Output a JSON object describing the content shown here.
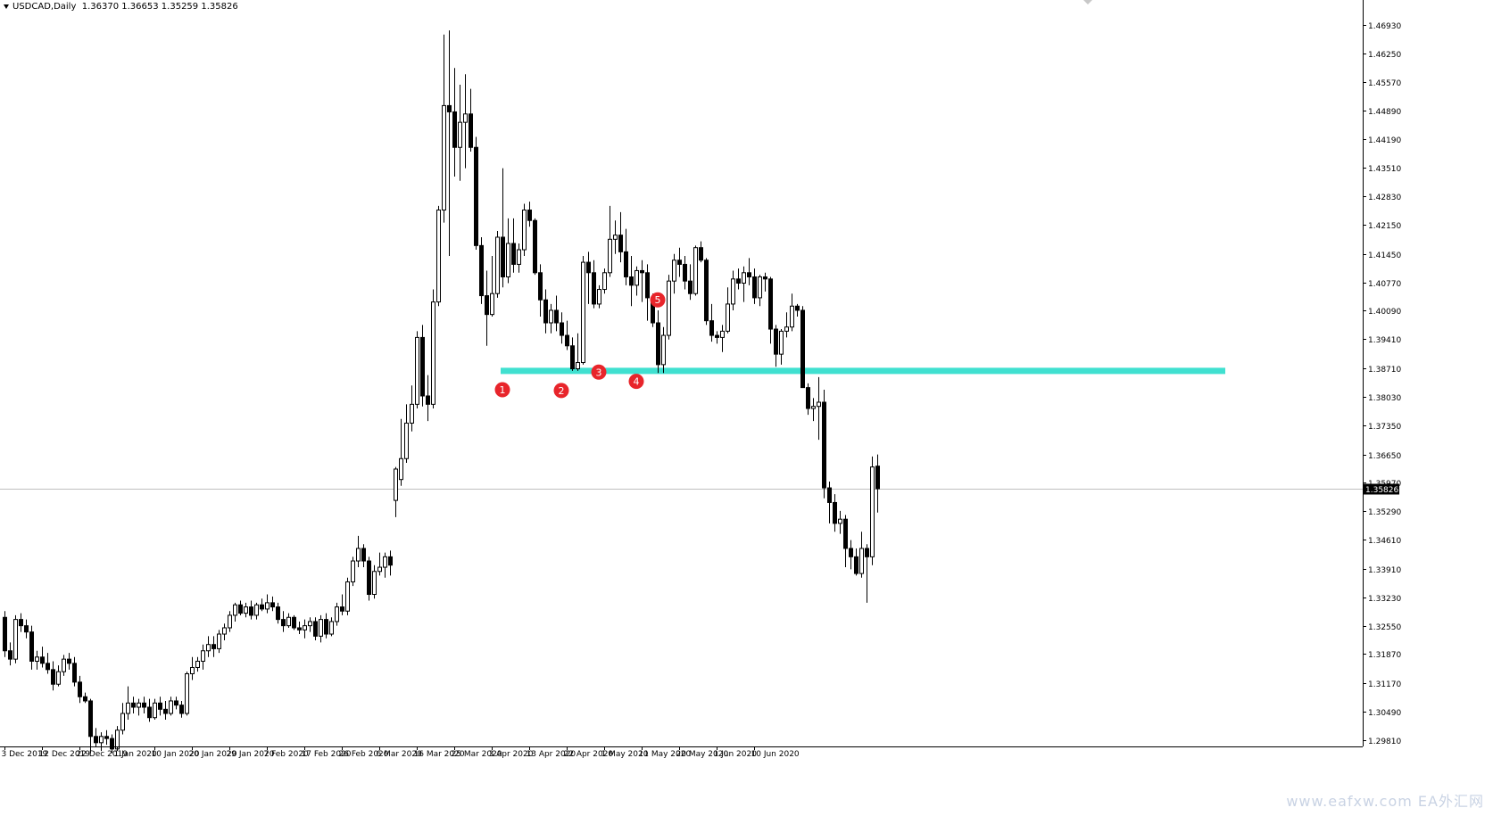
{
  "header": {
    "symbol_timeframe": "USDCAD,Daily",
    "ohlc": "1.36370 1.36653 1.35259 1.35826"
  },
  "watermark": "www.eafxw.com  EA外汇网",
  "colors": {
    "background": "#ffffff",
    "candle": "#000000",
    "support_band": "#40e0d0",
    "marker": "#e8252b",
    "price_line": "#c0c0c0"
  },
  "chart_data": {
    "type": "candlestick",
    "symbol": "USDCAD",
    "timeframe": "Daily",
    "current_price": 1.35826,
    "current_price_label": "1.35826",
    "y_range": [
      1.2906,
      1.4736
    ],
    "y_ticks": [
      "1.46930",
      "1.46250",
      "1.45570",
      "1.44890",
      "1.44190",
      "1.43510",
      "1.42830",
      "1.42150",
      "1.41450",
      "1.40770",
      "1.40090",
      "1.39410",
      "1.38710",
      "1.38030",
      "1.37350",
      "1.36650",
      "1.35970",
      "1.35290",
      "1.34610",
      "1.33910",
      "1.33230",
      "1.32550",
      "1.31870",
      "1.31170",
      "1.30490",
      "1.29810"
    ],
    "x_labels": [
      {
        "bar": 0,
        "label": "3 Dec 2019"
      },
      {
        "bar": 7,
        "label": "12 Dec 2019"
      },
      {
        "bar": 14,
        "label": "22 Dec 2019"
      },
      {
        "bar": 21,
        "label": "1 Jan 2020"
      },
      {
        "bar": 28,
        "label": "10 Jan 2020"
      },
      {
        "bar": 35,
        "label": "20 Jan 2020"
      },
      {
        "bar": 42,
        "label": "29 Jan 2020"
      },
      {
        "bar": 49,
        "label": "7 Feb 2020"
      },
      {
        "bar": 56,
        "label": "17 Feb 2020"
      },
      {
        "bar": 63,
        "label": "26 Feb 2020"
      },
      {
        "bar": 70,
        "label": "6 Mar 2020"
      },
      {
        "bar": 77,
        "label": "16 Mar 2020"
      },
      {
        "bar": 84,
        "label": "25 Mar 2020"
      },
      {
        "bar": 91,
        "label": "3 Apr 2020"
      },
      {
        "bar": 98,
        "label": "13 Apr 2020"
      },
      {
        "bar": 105,
        "label": "22 Apr 2020"
      },
      {
        "bar": 112,
        "label": "1 May 2020"
      },
      {
        "bar": 119,
        "label": "11 May 2020"
      },
      {
        "bar": 126,
        "label": "20 May 2020"
      },
      {
        "bar": 133,
        "label": "1 Jun 2020"
      },
      {
        "bar": 140,
        "label": "10 Jun 2020"
      }
    ],
    "candles": [
      [
        1.3275,
        1.329,
        1.318,
        1.3195
      ],
      [
        1.3195,
        1.3215,
        1.316,
        1.3175
      ],
      [
        1.3175,
        1.328,
        1.3165,
        1.327
      ],
      [
        1.327,
        1.3285,
        1.324,
        1.3255
      ],
      [
        1.3255,
        1.327,
        1.3225,
        1.324
      ],
      [
        1.324,
        1.3255,
        1.315,
        1.317
      ],
      [
        1.317,
        1.3195,
        1.315,
        1.318
      ],
      [
        1.318,
        1.3205,
        1.3155,
        1.3165
      ],
      [
        1.3165,
        1.319,
        1.314,
        1.315
      ],
      [
        1.315,
        1.317,
        1.31,
        1.3115
      ],
      [
        1.3115,
        1.316,
        1.311,
        1.3145
      ],
      [
        1.3145,
        1.3185,
        1.3135,
        1.3175
      ],
      [
        1.3175,
        1.319,
        1.315,
        1.3165
      ],
      [
        1.3165,
        1.318,
        1.311,
        1.312
      ],
      [
        1.312,
        1.3135,
        1.307,
        1.3085
      ],
      [
        1.3085,
        1.3095,
        1.307,
        1.3075
      ],
      [
        1.3075,
        1.308,
        1.295,
        1.299
      ],
      [
        1.299,
        1.301,
        1.2965,
        1.2975
      ],
      [
        1.2975,
        1.3,
        1.2955,
        1.299
      ],
      [
        1.299,
        1.3005,
        1.297,
        1.2985
      ],
      [
        1.2985,
        1.2995,
        1.295,
        1.296
      ],
      [
        1.296,
        1.3015,
        1.2955,
        1.3005
      ],
      [
        1.3005,
        1.307,
        1.2995,
        1.3045
      ],
      [
        1.3045,
        1.311,
        1.303,
        1.307
      ],
      [
        1.307,
        1.3085,
        1.3045,
        1.306
      ],
      [
        1.306,
        1.308,
        1.304,
        1.307
      ],
      [
        1.307,
        1.3085,
        1.3045,
        1.306
      ],
      [
        1.306,
        1.308,
        1.3025,
        1.3035
      ],
      [
        1.3035,
        1.308,
        1.303,
        1.307
      ],
      [
        1.307,
        1.3085,
        1.304,
        1.3055
      ],
      [
        1.3055,
        1.3075,
        1.303,
        1.3045
      ],
      [
        1.3045,
        1.3085,
        1.304,
        1.3075
      ],
      [
        1.3075,
        1.3085,
        1.3055,
        1.3065
      ],
      [
        1.3065,
        1.3075,
        1.3035,
        1.3045
      ],
      [
        1.3045,
        1.3145,
        1.304,
        1.314
      ],
      [
        1.314,
        1.318,
        1.3125,
        1.3155
      ],
      [
        1.3155,
        1.318,
        1.3145,
        1.317
      ],
      [
        1.317,
        1.321,
        1.315,
        1.3195
      ],
      [
        1.3195,
        1.323,
        1.318,
        1.321
      ],
      [
        1.321,
        1.323,
        1.318,
        1.32
      ],
      [
        1.32,
        1.3245,
        1.319,
        1.3235
      ],
      [
        1.3235,
        1.326,
        1.322,
        1.325
      ],
      [
        1.325,
        1.329,
        1.324,
        1.328
      ],
      [
        1.328,
        1.331,
        1.3265,
        1.3305
      ],
      [
        1.3305,
        1.3315,
        1.328,
        1.3285
      ],
      [
        1.3285,
        1.331,
        1.3275,
        1.33
      ],
      [
        1.33,
        1.3315,
        1.327,
        1.328
      ],
      [
        1.328,
        1.331,
        1.327,
        1.3305
      ],
      [
        1.3305,
        1.332,
        1.329,
        1.3295
      ],
      [
        1.3295,
        1.333,
        1.3285,
        1.331
      ],
      [
        1.331,
        1.3325,
        1.329,
        1.33
      ],
      [
        1.33,
        1.331,
        1.326,
        1.327
      ],
      [
        1.327,
        1.329,
        1.324,
        1.3255
      ],
      [
        1.3255,
        1.3285,
        1.325,
        1.3275
      ],
      [
        1.3275,
        1.328,
        1.3245,
        1.325
      ],
      [
        1.325,
        1.3265,
        1.3235,
        1.3245
      ],
      [
        1.3245,
        1.327,
        1.3225,
        1.3255
      ],
      [
        1.3255,
        1.3275,
        1.324,
        1.3265
      ],
      [
        1.3265,
        1.3275,
        1.322,
        1.323
      ],
      [
        1.323,
        1.328,
        1.3215,
        1.327
      ],
      [
        1.327,
        1.3285,
        1.3225,
        1.3235
      ],
      [
        1.3235,
        1.3275,
        1.323,
        1.3265
      ],
      [
        1.3265,
        1.331,
        1.3255,
        1.33
      ],
      [
        1.33,
        1.333,
        1.328,
        1.329
      ],
      [
        1.329,
        1.337,
        1.328,
        1.336
      ],
      [
        1.336,
        1.342,
        1.335,
        1.341
      ],
      [
        1.341,
        1.347,
        1.3395,
        1.344
      ],
      [
        1.344,
        1.345,
        1.3395,
        1.341
      ],
      [
        1.341,
        1.342,
        1.3315,
        1.333
      ],
      [
        1.333,
        1.34,
        1.332,
        1.3385
      ],
      [
        1.3385,
        1.343,
        1.3375,
        1.3395
      ],
      [
        1.3395,
        1.343,
        1.337,
        1.342
      ],
      [
        1.342,
        1.3435,
        1.3375,
        1.34
      ],
      [
        1.3555,
        1.3635,
        1.3515,
        1.363
      ],
      [
        1.3605,
        1.375,
        1.359,
        1.3655
      ],
      [
        1.3655,
        1.3785,
        1.3645,
        1.374
      ],
      [
        1.374,
        1.383,
        1.372,
        1.3785
      ],
      [
        1.3785,
        1.396,
        1.3775,
        1.3945
      ],
      [
        1.3945,
        1.3975,
        1.378,
        1.3805
      ],
      [
        1.3805,
        1.3855,
        1.3745,
        1.3785
      ],
      [
        1.3785,
        1.406,
        1.3775,
        1.403
      ],
      [
        1.403,
        1.426,
        1.402,
        1.425
      ],
      [
        1.425,
        1.467,
        1.422,
        1.45
      ],
      [
        1.45,
        1.468,
        1.414,
        1.4485
      ],
      [
        1.4485,
        1.459,
        1.433,
        1.44
      ],
      [
        1.44,
        1.455,
        1.432,
        1.446
      ],
      [
        1.446,
        1.4575,
        1.435,
        1.448
      ],
      [
        1.448,
        1.454,
        1.439,
        1.44
      ],
      [
        1.44,
        1.4425,
        1.4155,
        1.4165
      ],
      [
        1.4165,
        1.4185,
        1.4025,
        1.4045
      ],
      [
        1.4045,
        1.4105,
        1.3925,
        1.4
      ],
      [
        1.4,
        1.414,
        1.3995,
        1.405
      ],
      [
        1.405,
        1.42,
        1.404,
        1.4185
      ],
      [
        1.4185,
        1.435,
        1.4065,
        1.409
      ],
      [
        1.409,
        1.423,
        1.4075,
        1.417
      ],
      [
        1.417,
        1.423,
        1.41,
        1.412
      ],
      [
        1.412,
        1.417,
        1.41,
        1.4155
      ],
      [
        1.4155,
        1.4265,
        1.414,
        1.425
      ],
      [
        1.425,
        1.427,
        1.421,
        1.4225
      ],
      [
        1.4225,
        1.423,
        1.4095,
        1.41
      ],
      [
        1.41,
        1.412,
        1.3995,
        1.4035
      ],
      [
        1.4035,
        1.406,
        1.3955,
        1.398
      ],
      [
        1.398,
        1.4025,
        1.3955,
        1.401
      ],
      [
        1.401,
        1.4045,
        1.396,
        1.398
      ],
      [
        1.398,
        1.4005,
        1.393,
        1.395
      ],
      [
        1.395,
        1.3985,
        1.3915,
        1.3925
      ],
      [
        1.3925,
        1.3945,
        1.3865,
        1.387
      ],
      [
        1.387,
        1.3955,
        1.3865,
        1.3885
      ],
      [
        1.3885,
        1.414,
        1.388,
        1.4125
      ],
      [
        1.4125,
        1.415,
        1.4025,
        1.41
      ],
      [
        1.41,
        1.413,
        1.4015,
        1.4025
      ],
      [
        1.4025,
        1.407,
        1.4015,
        1.406
      ],
      [
        1.406,
        1.411,
        1.405,
        1.41
      ],
      [
        1.41,
        1.426,
        1.409,
        1.418
      ],
      [
        1.418,
        1.4225,
        1.4145,
        1.419
      ],
      [
        1.419,
        1.4245,
        1.4125,
        1.415
      ],
      [
        1.415,
        1.4205,
        1.407,
        1.409
      ],
      [
        1.409,
        1.414,
        1.402,
        1.407
      ],
      [
        1.407,
        1.4115,
        1.4045,
        1.4105
      ],
      [
        1.4105,
        1.413,
        1.403,
        1.41
      ],
      [
        1.41,
        1.412,
        1.3985,
        1.404
      ],
      [
        1.404,
        1.405,
        1.397,
        1.398
      ],
      [
        1.398,
        1.401,
        1.386,
        1.388
      ],
      [
        1.388,
        1.397,
        1.386,
        1.395
      ],
      [
        1.395,
        1.4095,
        1.394,
        1.408
      ],
      [
        1.408,
        1.4145,
        1.405,
        1.413
      ],
      [
        1.413,
        1.416,
        1.409,
        1.412
      ],
      [
        1.412,
        1.414,
        1.406,
        1.408
      ],
      [
        1.408,
        1.412,
        1.4035,
        1.405
      ],
      [
        1.405,
        1.4165,
        1.4045,
        1.416
      ],
      [
        1.416,
        1.4175,
        1.4125,
        1.413
      ],
      [
        1.413,
        1.4135,
        1.3975,
        1.3985
      ],
      [
        1.3985,
        1.4025,
        1.3935,
        1.395
      ],
      [
        1.395,
        1.396,
        1.393,
        1.3945
      ],
      [
        1.3945,
        1.3975,
        1.391,
        1.396
      ],
      [
        1.396,
        1.4065,
        1.3955,
        1.4025
      ],
      [
        1.4025,
        1.4105,
        1.401,
        1.4085
      ],
      [
        1.4085,
        1.411,
        1.406,
        1.4075
      ],
      [
        1.4075,
        1.4115,
        1.403,
        1.41
      ],
      [
        1.41,
        1.4135,
        1.407,
        1.409
      ],
      [
        1.409,
        1.411,
        1.4025,
        1.404
      ],
      [
        1.404,
        1.4095,
        1.402,
        1.409
      ],
      [
        1.409,
        1.41,
        1.4055,
        1.4085
      ],
      [
        1.4085,
        1.409,
        1.393,
        1.3965
      ],
      [
        1.3965,
        1.3975,
        1.3875,
        1.3905
      ],
      [
        1.3905,
        1.3965,
        1.388,
        1.396
      ],
      [
        1.396,
        1.4005,
        1.3945,
        1.397
      ],
      [
        1.397,
        1.405,
        1.396,
        1.402
      ],
      [
        1.402,
        1.4025,
        1.3995,
        1.401
      ],
      [
        1.401,
        1.402,
        1.383,
        1.3825
      ],
      [
        1.3825,
        1.3835,
        1.376,
        1.3775
      ],
      [
        1.3775,
        1.38,
        1.3745,
        1.378
      ],
      [
        1.378,
        1.385,
        1.37,
        1.379
      ],
      [
        1.379,
        1.382,
        1.356,
        1.3585
      ],
      [
        1.3585,
        1.36,
        1.35,
        1.355
      ],
      [
        1.355,
        1.357,
        1.348,
        1.35
      ],
      [
        1.35,
        1.353,
        1.3475,
        1.351
      ],
      [
        1.351,
        1.352,
        1.3395,
        1.344
      ],
      [
        1.344,
        1.346,
        1.339,
        1.342
      ],
      [
        1.342,
        1.344,
        1.3375,
        1.338
      ],
      [
        1.338,
        1.348,
        1.337,
        1.344
      ],
      [
        1.344,
        1.345,
        1.331,
        1.342
      ],
      [
        1.342,
        1.366,
        1.34,
        1.3635
      ],
      [
        1.3637,
        1.3665,
        1.3526,
        1.3583
      ]
    ],
    "support_level": {
      "price": 1.3865,
      "from_bar": 93,
      "to_extends": true
    },
    "annotations": [
      {
        "label": "1",
        "bar": 93,
        "price": 1.382
      },
      {
        "label": "2",
        "bar": 104,
        "price": 1.3818
      },
      {
        "label": "3",
        "bar": 111,
        "price": 1.3862
      },
      {
        "label": "4",
        "bar": 118,
        "price": 1.384
      },
      {
        "label": "5",
        "bar": 122,
        "price": 1.4035
      }
    ]
  }
}
